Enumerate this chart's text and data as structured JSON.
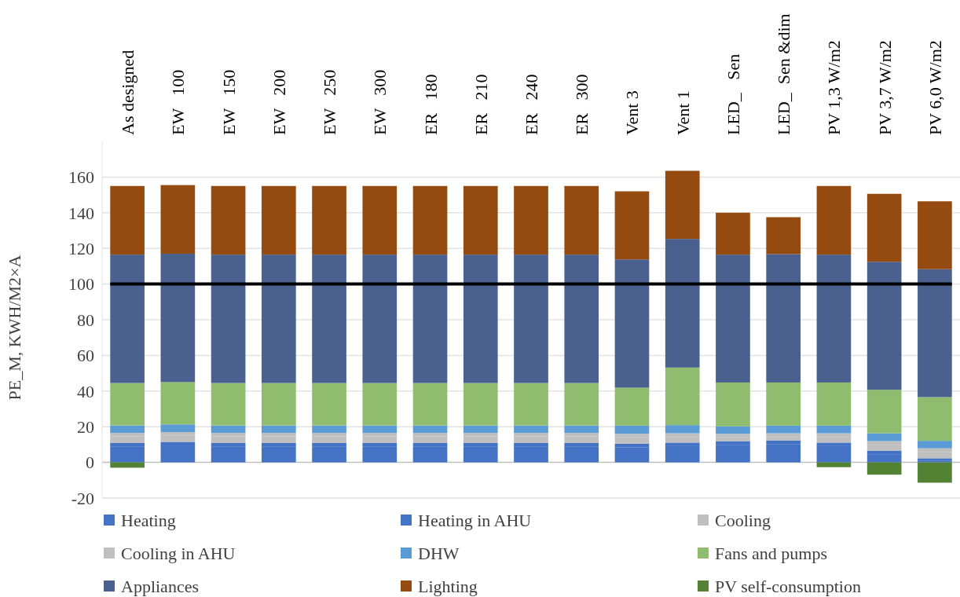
{
  "chart_data": {
    "type": "bar",
    "stacked": true,
    "ylabel": "PE_M, KWH/M2×A",
    "categories": [
      "As designed",
      "EW   100",
      "EW   150",
      "EW   200",
      "EW   250",
      "EW   300",
      "ER   180",
      "ER   210",
      "ER   240",
      "ER   300",
      "Vent 3",
      "Vent 1",
      "LED_   Sen",
      "LED_  Sen &dim",
      "PV 1,3 W/m2",
      "PV 3,7 W/m2",
      "PV 6,0 W/m2"
    ],
    "series": [
      {
        "name": "Heating",
        "color": "#4472c4",
        "values": [
          9,
          9.5,
          9,
          9,
          9,
          9,
          9,
          9,
          9,
          9,
          8.5,
          9.1,
          9.9,
          10.3,
          9.1,
          4.6,
          0.8
        ]
      },
      {
        "name": "Heating in AHU",
        "color": "#4472c4",
        "values": [
          2,
          2,
          2,
          2,
          2,
          2,
          2,
          2,
          2,
          2,
          2,
          2,
          2,
          2,
          2,
          2,
          1.5
        ]
      },
      {
        "name": "Cooling",
        "color": "#bfbfbf",
        "values": [
          3.5,
          3.5,
          3.5,
          3.5,
          3.5,
          3.5,
          3.5,
          3.5,
          3.5,
          3.5,
          3.5,
          3.2,
          2.1,
          2,
          3.2,
          3.3,
          3.6
        ]
      },
      {
        "name": "Cooling in AHU",
        "color": "#bfbfbf",
        "values": [
          2,
          2,
          2,
          2,
          2,
          2,
          2,
          2,
          2,
          2,
          2,
          2,
          2,
          2,
          2,
          2,
          2
        ]
      },
      {
        "name": "DHW",
        "color": "#5b9bd5",
        "values": [
          4.2,
          4.3,
          4.2,
          4.2,
          4.2,
          4.2,
          4.2,
          4.2,
          4.2,
          4.2,
          4.6,
          4.6,
          4.2,
          4.3,
          4.3,
          4.4,
          4.2
        ]
      },
      {
        "name": "Fans and pumps",
        "color": "#8fbc6e",
        "values": [
          23.8,
          23.7,
          23.8,
          23.8,
          23.8,
          23.8,
          23.8,
          23.8,
          23.8,
          23.8,
          21.3,
          32.3,
          24.6,
          24.2,
          24.2,
          24.4,
          24.5
        ]
      },
      {
        "name": "Appliances",
        "color": "#4a618f",
        "values": [
          72,
          72,
          72,
          72,
          72,
          72,
          72,
          72,
          72,
          72,
          71.9,
          72.1,
          71.7,
          72,
          71.7,
          71.8,
          71.7
        ]
      },
      {
        "name": "Lighting",
        "color": "#954a10",
        "values": [
          38.5,
          38.5,
          38.5,
          38.5,
          38.5,
          38.5,
          38.5,
          38.5,
          38.5,
          38.5,
          38.2,
          38.2,
          23.5,
          20.7,
          38.5,
          38.1,
          38.1
        ]
      },
      {
        "name": "PV self-consumption",
        "color": "#548235",
        "values": [
          -3,
          0,
          0,
          0,
          0,
          0,
          0,
          0,
          0,
          0,
          0,
          0,
          0,
          0,
          -2.7,
          -6.9,
          -11.4
        ]
      }
    ],
    "ylim": [
      -20,
      180
    ],
    "yticks": [
      -20,
      0,
      20,
      40,
      60,
      80,
      100,
      120,
      140,
      160
    ],
    "grid": "y",
    "legend": "bottom",
    "ref_lines": [
      {
        "axis": "y",
        "value": 100,
        "color": "#000000"
      }
    ]
  }
}
